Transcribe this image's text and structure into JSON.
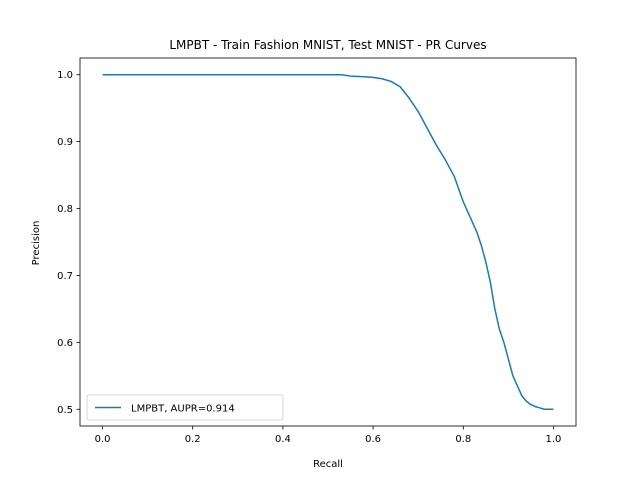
{
  "chart_data": {
    "type": "line",
    "title": "LMPBT - Train Fashion MNIST, Test MNIST - PR Curves",
    "xlabel": "Recall",
    "ylabel": "Precision",
    "xlim": [
      -0.05,
      1.05
    ],
    "ylim": [
      0.475,
      1.025
    ],
    "xticks": [
      0.0,
      0.2,
      0.4,
      0.6,
      0.8,
      1.0
    ],
    "xtick_labels": [
      "0.0",
      "0.2",
      "0.4",
      "0.6",
      "0.8",
      "1.0"
    ],
    "yticks": [
      0.5,
      0.6,
      0.7,
      0.8,
      0.9,
      1.0
    ],
    "ytick_labels": [
      "0.5",
      "0.6",
      "0.7",
      "0.8",
      "0.9",
      "1.0"
    ],
    "grid": false,
    "legend_position": "lower-left",
    "series": [
      {
        "name": "LMPBT, AUPR=0.914",
        "color": "#1f77b4",
        "x": [
          0.0,
          0.1,
          0.2,
          0.3,
          0.4,
          0.5,
          0.53,
          0.55,
          0.58,
          0.6,
          0.62,
          0.64,
          0.66,
          0.68,
          0.7,
          0.72,
          0.74,
          0.76,
          0.78,
          0.8,
          0.81,
          0.82,
          0.83,
          0.84,
          0.85,
          0.86,
          0.87,
          0.88,
          0.89,
          0.9,
          0.91,
          0.92,
          0.93,
          0.94,
          0.95,
          0.96,
          0.97,
          0.98,
          0.99,
          1.0
        ],
        "y": [
          1.0,
          1.0,
          1.0,
          1.0,
          1.0,
          1.0,
          1.0,
          0.998,
          0.997,
          0.996,
          0.994,
          0.99,
          0.982,
          0.965,
          0.945,
          0.92,
          0.895,
          0.873,
          0.848,
          0.81,
          0.795,
          0.78,
          0.765,
          0.745,
          0.72,
          0.69,
          0.65,
          0.62,
          0.6,
          0.575,
          0.55,
          0.535,
          0.52,
          0.512,
          0.507,
          0.504,
          0.502,
          0.5,
          0.5,
          0.5
        ]
      }
    ]
  }
}
